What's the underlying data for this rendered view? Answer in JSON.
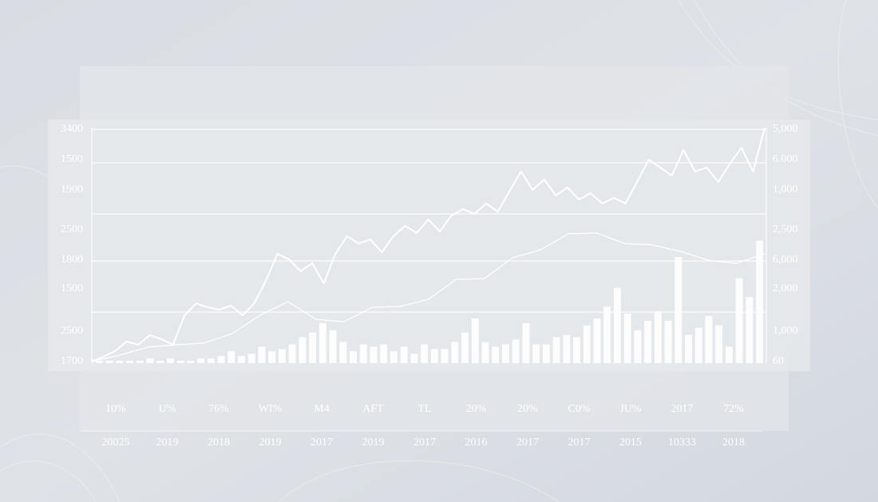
{
  "chart_data": {
    "type": "bar",
    "ylim": [
      0,
      100
    ],
    "color": "#ffffff",
    "left_axis_labels": [
      "3400",
      "1500",
      "1900",
      "2500",
      "1800",
      "1500",
      "2500",
      "1700"
    ],
    "right_axis_labels": [
      "5,000",
      "6.000",
      "1,000",
      "2,500",
      "6,000",
      "2,000",
      "1,000",
      "60"
    ],
    "values": [
      1,
      1,
      1,
      1,
      1,
      2,
      1,
      2,
      1,
      1,
      2,
      2,
      3,
      5,
      3,
      4,
      7,
      5,
      6,
      8,
      11,
      13,
      17,
      14,
      9,
      5,
      8,
      7,
      8,
      5,
      7,
      4,
      8,
      6,
      6,
      9,
      13,
      19,
      9,
      7,
      8,
      10,
      17,
      8,
      8,
      11,
      12,
      11,
      16,
      19,
      24,
      32,
      21,
      14,
      18,
      22,
      18,
      45,
      12,
      15,
      20,
      16,
      7,
      36,
      28,
      52
    ],
    "lines": [
      {
        "values": [
          0.7,
          2.7,
          5.1,
          9.2,
          7.8,
          11.9,
          10.2,
          7.8,
          20.3,
          25.4,
          23.7,
          22.7,
          24.4,
          20.3,
          25.4,
          34.9,
          46.4,
          44.1,
          39,
          42.4,
          33.9,
          46.4,
          53.9,
          50.8,
          52.5,
          47.1,
          53.9,
          58.3,
          55.3,
          61,
          55.9,
          62.7,
          65.4,
          63.4,
          67.8,
          64.4,
          72.9,
          81.4,
          73.6,
          78,
          71.2,
          74.6,
          69.5,
          72.2,
          67.8,
          70.2,
          67.8,
          76.9,
          86.4,
          83.1,
          79.7,
          90.5,
          81.4,
          83.1,
          76.9,
          84.7,
          91.5,
          81.4,
          100
        ]
      },
      {
        "values": [
          0.7,
          3.4,
          6.8,
          7.8,
          8.5,
          12.5,
          20.3,
          26.1,
          18.6,
          17.6,
          23.7,
          24.1,
          27.1,
          35.6,
          35.9,
          44.7,
          48.1,
          54.9,
          55.3,
          50.8,
          50.2,
          47.5,
          43.7,
          42.4,
          46.4
        ]
      }
    ],
    "label_rows": [
      [
        "10%",
        "U%",
        "76%",
        "WI%",
        "M4",
        "AFT",
        "TL",
        "20%",
        "20%",
        "C0%",
        "JU%",
        "2017",
        "72%"
      ],
      [
        "20025",
        "2019",
        "2018",
        "2019",
        "2017",
        "2019",
        "2017",
        "2016",
        "2017",
        "2017",
        "2015",
        "10333",
        "2018"
      ]
    ]
  }
}
